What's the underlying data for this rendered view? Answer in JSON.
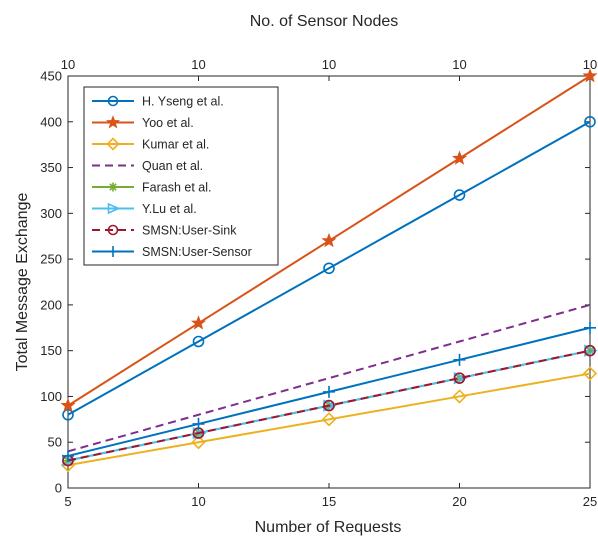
{
  "chart_data": {
    "type": "line",
    "title": "No. of Sensor Nodes",
    "xlabel": "Number of Requests",
    "ylabel": "Total Message Exchange",
    "x": [
      5,
      10,
      15,
      20,
      25
    ],
    "xlim": [
      5,
      25
    ],
    "ylim": [
      0,
      450
    ],
    "x_ticks": [
      "5",
      "10",
      "15",
      "20",
      "25"
    ],
    "y_ticks": [
      "0",
      "50",
      "100",
      "150",
      "200",
      "250",
      "300",
      "350",
      "400",
      "450"
    ],
    "top_axis_ticks": [
      "10",
      "10",
      "10",
      "10",
      "10"
    ],
    "grid": false,
    "legend_position": "top-left",
    "series": [
      {
        "name": "H. Yseng et al.",
        "values": [
          80,
          160,
          240,
          320,
          400
        ],
        "color": "#0072BD",
        "marker": "circle",
        "dash": "solid"
      },
      {
        "name": "Yoo et al.",
        "values": [
          90,
          180,
          270,
          360,
          450
        ],
        "color": "#D95319",
        "marker": "star",
        "dash": "solid"
      },
      {
        "name": "Kumar et al.",
        "values": [
          25,
          50,
          75,
          100,
          125
        ],
        "color": "#EDB120",
        "marker": "diamond",
        "dash": "solid"
      },
      {
        "name": "Quan et al.",
        "values": [
          40,
          80,
          120,
          160,
          200
        ],
        "color": "#7E2F8E",
        "marker": "none",
        "dash": "dashed"
      },
      {
        "name": "Farash et al.",
        "values": [
          30,
          60,
          90,
          120,
          150
        ],
        "color": "#77AC30",
        "marker": "asterisk",
        "dash": "solid"
      },
      {
        "name": "Y.Lu et al.",
        "values": [
          30,
          60,
          90,
          120,
          150
        ],
        "color": "#4DBEEE",
        "marker": "triangle-right",
        "dash": "solid"
      },
      {
        "name": "SMSN:User-Sink",
        "values": [
          30,
          60,
          90,
          120,
          150
        ],
        "color": "#A2142F",
        "marker": "circle",
        "dash": "dashed"
      },
      {
        "name": "SMSN:User-Sensor",
        "values": [
          35,
          70,
          105,
          140,
          175
        ],
        "color": "#0072BD",
        "marker": "plus",
        "dash": "solid"
      }
    ]
  }
}
